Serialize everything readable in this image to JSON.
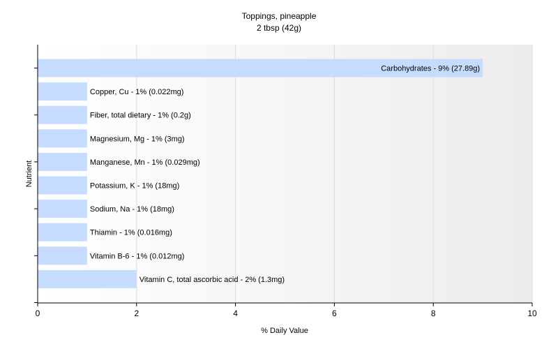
{
  "chart_data": {
    "type": "bar",
    "orientation": "horizontal",
    "title": "Toppings, pineapple",
    "subtitle": "2 tbsp (42g)",
    "xlabel": "% Daily Value",
    "ylabel": "Nutrient",
    "xlim": [
      0,
      10
    ],
    "xticks": [
      0,
      2,
      4,
      6,
      8,
      10
    ],
    "grid": "vertical",
    "bar_color": "#c6dcff",
    "categories": [
      "Carbohydrates",
      "Copper, Cu",
      "Fiber, total dietary",
      "Magnesium, Mg",
      "Manganese, Mn",
      "Potassium, K",
      "Sodium, Na",
      "Thiamin",
      "Vitamin B-6",
      "Vitamin C, total ascorbic acid"
    ],
    "values": [
      9,
      1,
      1,
      1,
      1,
      1,
      1,
      1,
      1,
      2
    ],
    "labels": [
      "Carbohydrates - 9% (27.89g)",
      "Copper, Cu - 1% (0.022mg)",
      "Fiber, total dietary - 1% (0.2g)",
      "Magnesium, Mg - 1% (3mg)",
      "Manganese, Mn - 1% (0.029mg)",
      "Potassium, K - 1% (18mg)",
      "Sodium, Na - 1% (18mg)",
      "Thiamin - 1% (0.016mg)",
      "Vitamin B-6 - 1% (0.012mg)",
      "Vitamin C, total ascorbic acid - 2% (1.3mg)"
    ]
  }
}
